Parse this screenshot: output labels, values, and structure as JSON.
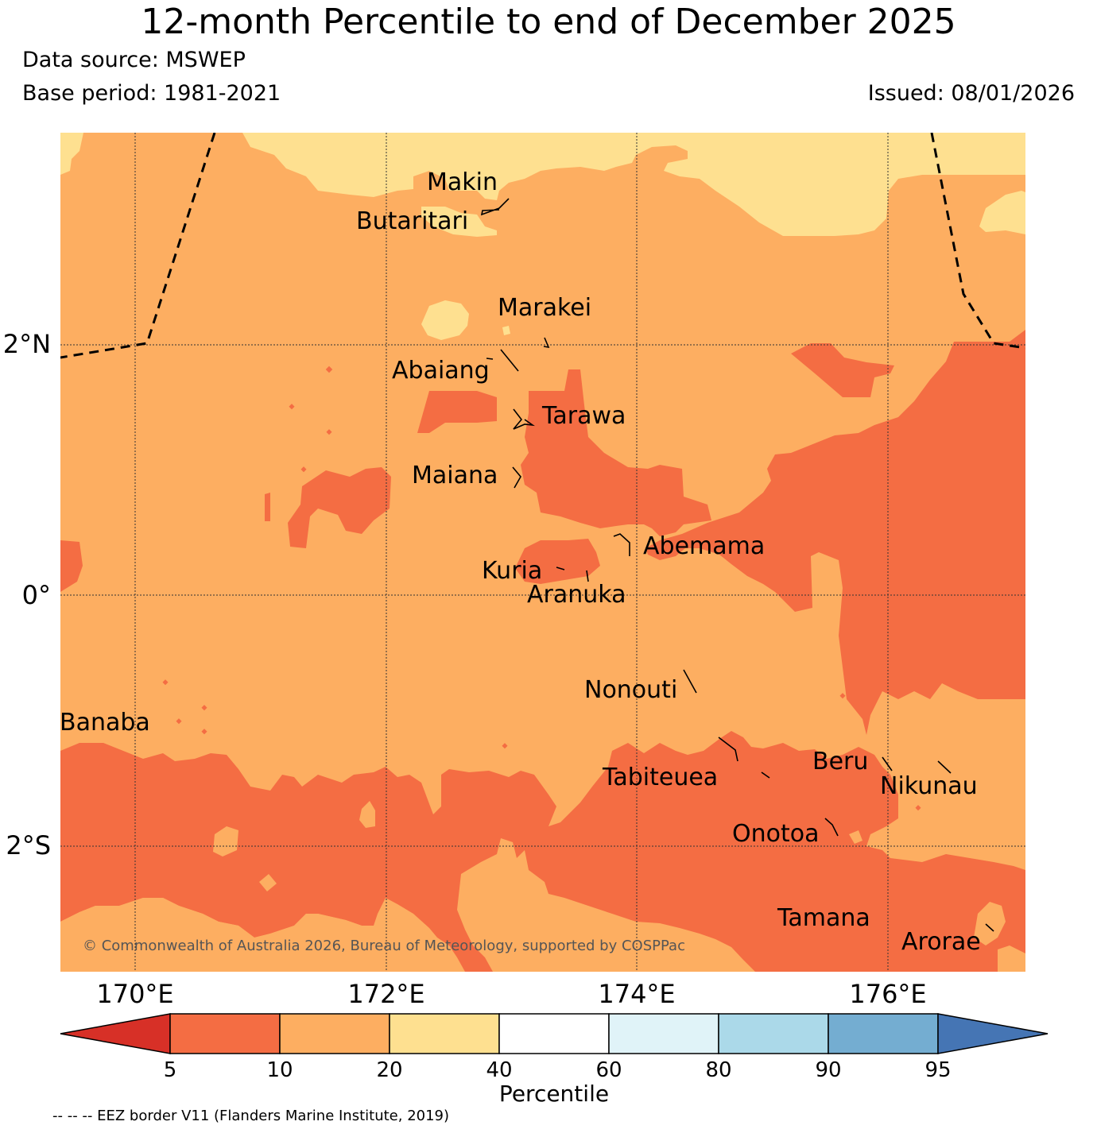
{
  "title": "12-month Percentile to end of December 2025",
  "data_source": "Data source: MSWEP",
  "base_period": "Base period: 1981-2021",
  "issued": "Issued: 08/01/2026",
  "lat_labels": [
    "2°N",
    "0°",
    "2°S"
  ],
  "lon_labels": [
    "170°E",
    "172°E",
    "174°E",
    "176°E"
  ],
  "places": [
    "Makin",
    "Butaritari",
    "Marakei",
    "Abaiang",
    "Tarawa",
    "Maiana",
    "Abemama",
    "Kuria",
    "Aranuka",
    "Nonouti",
    "Banaba",
    "Beru",
    "Tabiteuea",
    "Nikunau",
    "Onotoa",
    "Tamana",
    "Arorae"
  ],
  "copyright": "© Commonwealth of Australia 2026, Bureau of Meteorology, supported by COSPPac",
  "colorbar": {
    "label": "Percentile",
    "ticks": [
      "5",
      "10",
      "20",
      "40",
      "60",
      "80",
      "90",
      "95"
    ],
    "colors": [
      "#d73027",
      "#f46d43",
      "#fdae61",
      "#fee090",
      "#ffffff",
      "#e0f3f8",
      "#abd9e9",
      "#74add1",
      "#4575b4"
    ]
  },
  "eez_note": "-- -- -- EEZ border V11 (Flanders Marine Institute, 2019)"
}
